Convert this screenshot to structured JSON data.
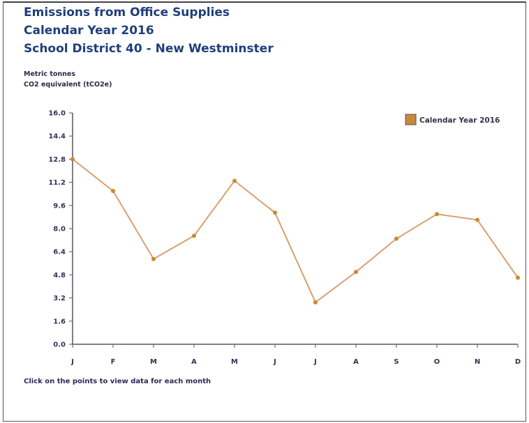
{
  "header": {
    "title_line1": "Emissions from Office Supplies",
    "title_line2": "Calendar Year 2016",
    "title_line3": "School District 40 - New Westminster"
  },
  "footer": {
    "note": "Click on the points to view data for each month"
  },
  "chart_data": {
    "type": "line",
    "ylabel_line1": "Metric tonnes",
    "ylabel_line2": "CO2 equivalent (tCO2e)",
    "categories": [
      "J",
      "F",
      "M",
      "A",
      "M",
      "J",
      "J",
      "A",
      "S",
      "O",
      "N",
      "D"
    ],
    "yticks": [
      "0.0",
      "1.6",
      "3.2",
      "4.8",
      "6.4",
      "8.0",
      "9.6",
      "11.2",
      "12.8",
      "14.4",
      "16.0"
    ],
    "ylim": [
      0,
      16
    ],
    "grid": false,
    "legend_position": "top-right",
    "series": [
      {
        "name": "Calendar Year 2016",
        "values": [
          12.8,
          10.6,
          5.9,
          7.5,
          11.3,
          9.1,
          2.9,
          5.0,
          7.3,
          9.0,
          8.6,
          4.6
        ],
        "color": "#d9a070",
        "marker_color": "#c98a2c",
        "legend_color": "#c8893a"
      }
    ]
  }
}
